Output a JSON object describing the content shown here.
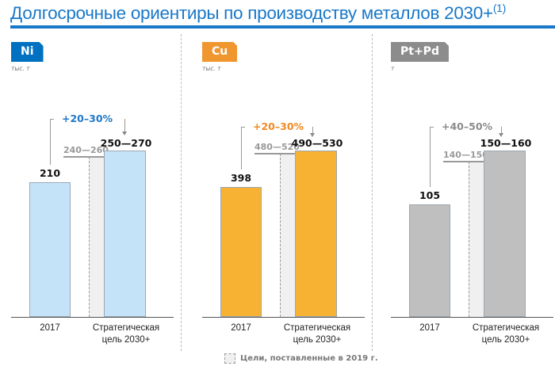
{
  "title": "Долгосрочные ориентиры по производству металлов 2030+",
  "title_footnote": "(1)",
  "chart_data": [
    {
      "type": "bar",
      "metal": "Ni",
      "unit": "тыс. т",
      "color": "#c5e3f8",
      "badge_color": "#0070c0",
      "pct_color": "#1f78c8",
      "categories": [
        "2017",
        "Стратегическая цель 2030+"
      ],
      "value_2017": 210,
      "value_2017_label": "210",
      "target_range": [
        250,
        270
      ],
      "target_label": "250—270",
      "prev_target_range": [
        240,
        260
      ],
      "prev_target_label": "240—260",
      "growth_label": "+20–30%"
    },
    {
      "type": "bar",
      "metal": "Cu",
      "unit": "тыс. т",
      "color": "#f7b234",
      "badge_color": "#f0962e",
      "pct_color": "#f08a24",
      "categories": [
        "2017",
        "Стратегическая цель 2030+"
      ],
      "value_2017": 398,
      "value_2017_label": "398",
      "target_range": [
        490,
        530
      ],
      "target_label": "490—530",
      "prev_target_range": [
        480,
        520
      ],
      "prev_target_label": "480—520",
      "growth_label": "+20–30%"
    },
    {
      "type": "bar",
      "metal": "Pt+Pd",
      "unit": "т",
      "color": "#bfbfbf",
      "badge_color": "#8c8c8c",
      "pct_color": "#8c8c8c",
      "categories": [
        "2017",
        "Стратегическая цель 2030+"
      ],
      "value_2017": 105,
      "value_2017_label": "105",
      "target_range": [
        150,
        160
      ],
      "target_label": "150—160",
      "prev_target_range": [
        140,
        150
      ],
      "prev_target_label": "140—150",
      "growth_label": "+40–50%"
    }
  ],
  "xlabels": {
    "c1": "2017",
    "c2_line1": "Стратегическая",
    "c2_line2": "цель 2030+"
  },
  "legend": {
    "label": "Цели, поставленные в 2019 г."
  }
}
